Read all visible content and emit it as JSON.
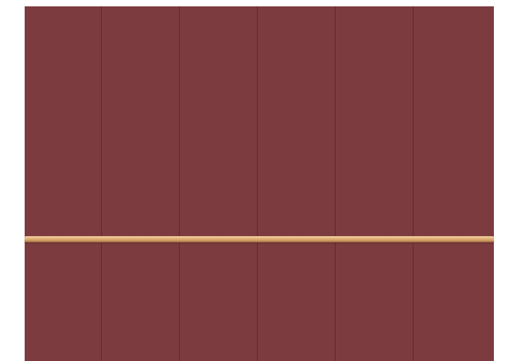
{
  "wardrobe": {
    "door_count": 6,
    "colors": {
      "body": "#7c3c3f",
      "seam": "#5e2a2d",
      "rail": "#e4b27a"
    }
  }
}
